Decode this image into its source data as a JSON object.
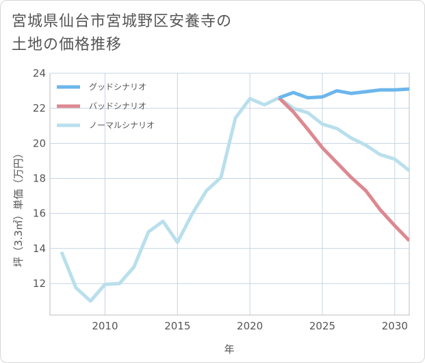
{
  "chart_data": {
    "type": "line",
    "title_lines": [
      "宮城県仙台市宮城野区安養寺の",
      "土地の価格推移"
    ],
    "xlabel": "年",
    "ylabel": "坪（3.3㎡）単価（万円）",
    "xlim": [
      2006.2,
      2031
    ],
    "ylim": [
      10.2,
      24
    ],
    "x_ticks": [
      2010,
      2015,
      2020,
      2025,
      2030
    ],
    "y_ticks": [
      12,
      14,
      16,
      18,
      20,
      22,
      24
    ],
    "grid": true,
    "legend_position": "top-left",
    "series": [
      {
        "name": "グッドシナリオ",
        "color": "#6cb6ec",
        "x": [
          2022,
          2023,
          2024,
          2025,
          2026,
          2027,
          2028,
          2029,
          2030,
          2031
        ],
        "values": [
          22.6,
          22.9,
          22.6,
          22.65,
          23.0,
          22.85,
          22.95,
          23.05,
          23.05,
          23.1
        ]
      },
      {
        "name": "バッドシナリオ",
        "color": "#dd8890",
        "x": [
          2022,
          2023,
          2024,
          2025,
          2026,
          2027,
          2028,
          2029,
          2030,
          2031
        ],
        "values": [
          22.6,
          21.8,
          20.8,
          19.75,
          18.9,
          18.05,
          17.3,
          16.2,
          15.3,
          14.45
        ]
      },
      {
        "name": "ノーマルシナリオ",
        "color": "#b9dfec",
        "x": [
          2007,
          2008,
          2009,
          2010,
          2011,
          2012,
          2013,
          2014,
          2015,
          2016,
          2017,
          2018,
          2019,
          2020,
          2021,
          2022,
          2023,
          2024,
          2025,
          2026,
          2027,
          2028,
          2029,
          2030,
          2031
        ],
        "values": [
          13.8,
          11.75,
          11.0,
          11.95,
          12.0,
          12.95,
          14.95,
          15.55,
          14.35,
          15.95,
          17.3,
          18.05,
          21.45,
          22.55,
          22.2,
          22.6,
          22.0,
          21.75,
          21.1,
          20.85,
          20.3,
          19.9,
          19.35,
          19.1,
          18.45
        ]
      }
    ]
  }
}
